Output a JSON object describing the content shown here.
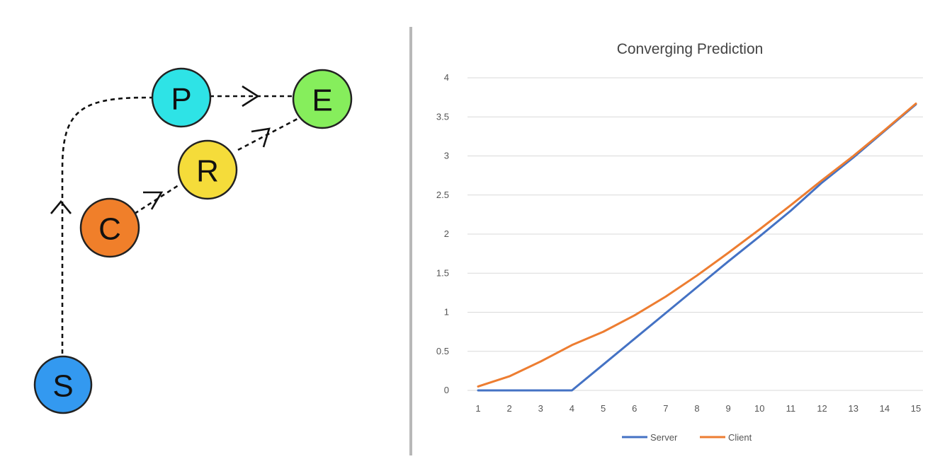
{
  "diagram": {
    "nodes": [
      {
        "id": "S",
        "label": "S",
        "color": "#3399f0"
      },
      {
        "id": "C",
        "label": "C",
        "color": "#f07f2a"
      },
      {
        "id": "R",
        "label": "R",
        "color": "#f5dc3a"
      },
      {
        "id": "P",
        "label": "P",
        "color": "#2ee3e6"
      },
      {
        "id": "E",
        "label": "E",
        "color": "#86ee5c"
      }
    ],
    "edges": [
      {
        "from": "S",
        "to": "P"
      },
      {
        "from": "C",
        "to": "R"
      },
      {
        "from": "R",
        "to": "E"
      },
      {
        "from": "P",
        "to": "E"
      }
    ]
  },
  "chart_data": {
    "type": "line",
    "title": "Converging Prediction",
    "xlabel": "",
    "ylabel": "",
    "x": [
      1,
      2,
      3,
      4,
      5,
      6,
      7,
      8,
      9,
      10,
      11,
      12,
      13,
      14,
      15
    ],
    "ylim": [
      0,
      4
    ],
    "yticks": [
      "0",
      "0.5",
      "1",
      "1.5",
      "2",
      "2.5",
      "3",
      "3.5",
      "4"
    ],
    "grid": true,
    "legend_position": "bottom",
    "series": [
      {
        "name": "Server",
        "color": "#4472c4",
        "values": [
          0,
          0,
          0,
          0,
          0.33,
          0.66,
          0.99,
          1.32,
          1.65,
          1.97,
          2.3,
          2.66,
          2.98,
          3.32,
          3.66
        ]
      },
      {
        "name": "Client",
        "color": "#ed7d31",
        "values": [
          0.05,
          0.18,
          0.37,
          0.58,
          0.75,
          0.96,
          1.2,
          1.47,
          1.76,
          2.06,
          2.37,
          2.69,
          3.0,
          3.33,
          3.67
        ]
      }
    ]
  }
}
